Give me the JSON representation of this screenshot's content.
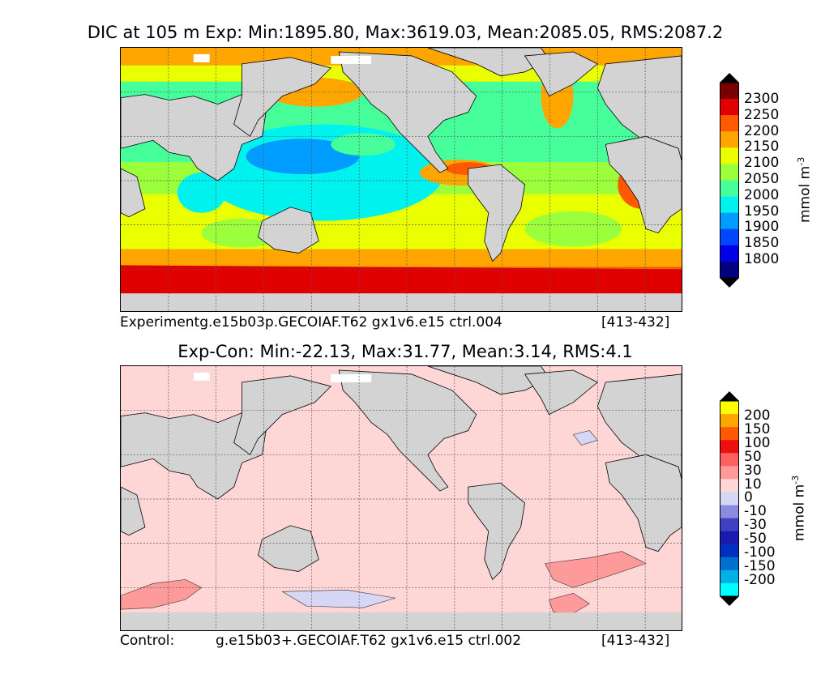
{
  "top_panel": {
    "title": "DIC at 105 m Exp: Min:1895.80, Max:3619.03, Mean:2085.05, RMS:2087.2",
    "caption_left": "Experimentg.e15b03p.GECOIAF.T62 gx1v6.e15 ctrl.004",
    "caption_right": "[413-432]",
    "colorbar": {
      "unit": "mmol m",
      "unit_exp": "-3",
      "ticks": [
        "2300",
        "2250",
        "2200",
        "2150",
        "2100",
        "2050",
        "2000",
        "1950",
        "1900",
        "1850",
        "1800"
      ],
      "colors": [
        "#7a0000",
        "#e00000",
        "#ff5a00",
        "#ffa500",
        "#eaff00",
        "#9cff3c",
        "#46ff9a",
        "#00f2ee",
        "#009cff",
        "#0046ff",
        "#0000e6",
        "#000080"
      ]
    }
  },
  "bottom_panel": {
    "title": "Exp-Con: Min:-22.13, Max:31.77, Mean:3.14, RMS:4.1",
    "caption_left": "Control:",
    "caption_mid": "g.e15b03+.GECOIAF.T62 gx1v6.e15 ctrl.002",
    "caption_right": "[413-432]",
    "colorbar": {
      "unit": "mmol m",
      "unit_exp": "-3",
      "ticks": [
        "200",
        "150",
        "100",
        "50",
        "30",
        "10",
        "0",
        "-10",
        "-30",
        "-50",
        "-100",
        "-150",
        "-200"
      ],
      "colors": [
        "#ffff00",
        "#ffa500",
        "#ff5a00",
        "#ee1010",
        "#ff6060",
        "#ff9a9a",
        "#ffd6d6",
        "#d6d6f5",
        "#8a8ae0",
        "#4040c0",
        "#1a1ab0",
        "#0030c0",
        "#0070d0",
        "#00b0e8",
        "#00ffff"
      ]
    }
  },
  "colors": {
    "land": "#d3d3d3",
    "frame": "#000000"
  }
}
